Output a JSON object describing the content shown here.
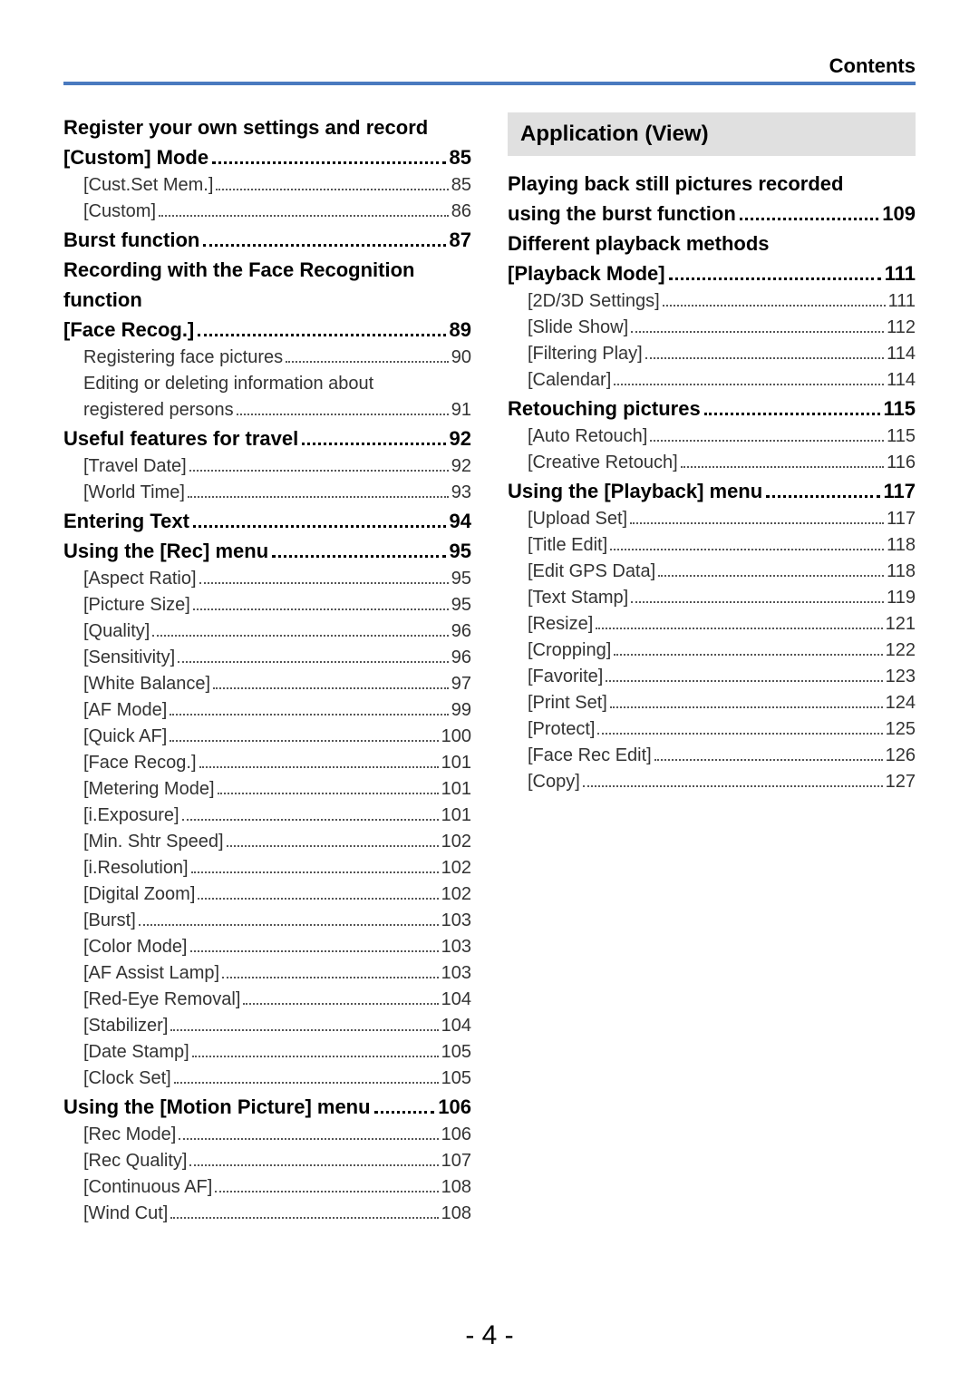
{
  "header": {
    "title": "Contents"
  },
  "colors": {
    "divider": "#4a7abf",
    "sectionBg": "#e0e0e0"
  },
  "pageNumber": "- 4 -",
  "left": [
    {
      "type": "heading-multiline",
      "lines": [
        "Register your own settings and record"
      ]
    },
    {
      "type": "heading",
      "label": "[Custom] Mode",
      "page": "85"
    },
    {
      "type": "sub",
      "label": "[Cust.Set Mem.]",
      "page": "85"
    },
    {
      "type": "sub",
      "label": "[Custom]",
      "page": "86"
    },
    {
      "type": "heading",
      "label": "Burst function",
      "page": "87"
    },
    {
      "type": "heading-multiline",
      "lines": [
        "Recording with the Face Recognition",
        "function"
      ]
    },
    {
      "type": "heading",
      "label": "[Face Recog.]",
      "page": "89"
    },
    {
      "type": "sub",
      "label": "Registering face pictures",
      "page": "90"
    },
    {
      "type": "sub-multiline",
      "lines": [
        "Editing or deleting information about"
      ]
    },
    {
      "type": "sub",
      "label": "registered persons",
      "page": "91"
    },
    {
      "type": "heading",
      "label": "Useful features for travel",
      "page": "92"
    },
    {
      "type": "sub",
      "label": "[Travel Date]",
      "page": "92"
    },
    {
      "type": "sub",
      "label": "[World Time]",
      "page": "93"
    },
    {
      "type": "heading",
      "label": "Entering Text",
      "page": "94"
    },
    {
      "type": "heading",
      "label": "Using the [Rec] menu",
      "page": "95"
    },
    {
      "type": "sub",
      "label": "[Aspect Ratio]",
      "page": "95"
    },
    {
      "type": "sub",
      "label": "[Picture Size]",
      "page": "95"
    },
    {
      "type": "sub",
      "label": "[Quality]",
      "page": "96"
    },
    {
      "type": "sub",
      "label": "[Sensitivity]",
      "page": "96"
    },
    {
      "type": "sub",
      "label": "[White Balance]",
      "page": "97"
    },
    {
      "type": "sub",
      "label": "[AF Mode]",
      "page": "99"
    },
    {
      "type": "sub",
      "label": "[Quick AF]",
      "page": "100"
    },
    {
      "type": "sub",
      "label": "[Face Recog.]",
      "page": "101"
    },
    {
      "type": "sub",
      "label": "[Metering Mode]",
      "page": "101"
    },
    {
      "type": "sub",
      "label": "[i.Exposure]",
      "page": "101"
    },
    {
      "type": "sub",
      "label": "[Min. Shtr Speed]",
      "page": "102"
    },
    {
      "type": "sub",
      "label": "[i.Resolution]",
      "page": "102"
    },
    {
      "type": "sub",
      "label": "[Digital Zoom]",
      "page": "102"
    },
    {
      "type": "sub",
      "label": "[Burst]",
      "page": "103"
    },
    {
      "type": "sub",
      "label": "[Color Mode]",
      "page": "103"
    },
    {
      "type": "sub",
      "label": "[AF Assist Lamp]",
      "page": "103"
    },
    {
      "type": "sub",
      "label": "[Red-Eye Removal]",
      "page": "104"
    },
    {
      "type": "sub",
      "label": "[Stabilizer]",
      "page": "104"
    },
    {
      "type": "sub",
      "label": "[Date Stamp]",
      "page": "105"
    },
    {
      "type": "sub",
      "label": "[Clock Set]",
      "page": "105"
    },
    {
      "type": "heading",
      "label": "Using the [Motion Picture] menu",
      "page": "106"
    },
    {
      "type": "sub",
      "label": "[Rec Mode]",
      "page": "106"
    },
    {
      "type": "sub",
      "label": "[Rec Quality]",
      "page": "107"
    },
    {
      "type": "sub",
      "label": "[Continuous AF]",
      "page": "108"
    },
    {
      "type": "sub",
      "label": "[Wind Cut]",
      "page": "108"
    }
  ],
  "right": {
    "sectionTitle": "Application (View)",
    "items": [
      {
        "type": "heading-multiline",
        "lines": [
          "Playing back still pictures recorded"
        ]
      },
      {
        "type": "heading",
        "label": "using the burst function",
        "page": "109"
      },
      {
        "type": "heading-multiline",
        "lines": [
          "Different playback methods"
        ]
      },
      {
        "type": "heading",
        "label": "[Playback Mode]",
        "page": "111"
      },
      {
        "type": "sub",
        "label": "[2D/3D Settings]",
        "page": "111"
      },
      {
        "type": "sub",
        "label": "[Slide Show]",
        "page": "112"
      },
      {
        "type": "sub",
        "label": "[Filtering Play]",
        "page": "114"
      },
      {
        "type": "sub",
        "label": "[Calendar]",
        "page": "114"
      },
      {
        "type": "heading",
        "label": "Retouching pictures",
        "page": "115"
      },
      {
        "type": "sub",
        "label": "[Auto Retouch]",
        "page": "115"
      },
      {
        "type": "sub",
        "label": "[Creative Retouch]",
        "page": "116"
      },
      {
        "type": "heading",
        "label": "Using the [Playback] menu",
        "page": "117"
      },
      {
        "type": "sub",
        "label": "[Upload Set]",
        "page": "117"
      },
      {
        "type": "sub",
        "label": "[Title Edit]",
        "page": "118"
      },
      {
        "type": "sub",
        "label": "[Edit GPS Data]",
        "page": "118"
      },
      {
        "type": "sub",
        "label": "[Text Stamp]",
        "page": "119"
      },
      {
        "type": "sub",
        "label": "[Resize]",
        "page": "121"
      },
      {
        "type": "sub",
        "label": "[Cropping]",
        "page": "122"
      },
      {
        "type": "sub",
        "label": "[Favorite]",
        "page": "123"
      },
      {
        "type": "sub",
        "label": "[Print Set]",
        "page": "124"
      },
      {
        "type": "sub",
        "label": "[Protect]",
        "page": "125"
      },
      {
        "type": "sub",
        "label": "[Face Rec Edit]",
        "page": "126"
      },
      {
        "type": "sub",
        "label": "[Copy]",
        "page": "127"
      }
    ]
  }
}
